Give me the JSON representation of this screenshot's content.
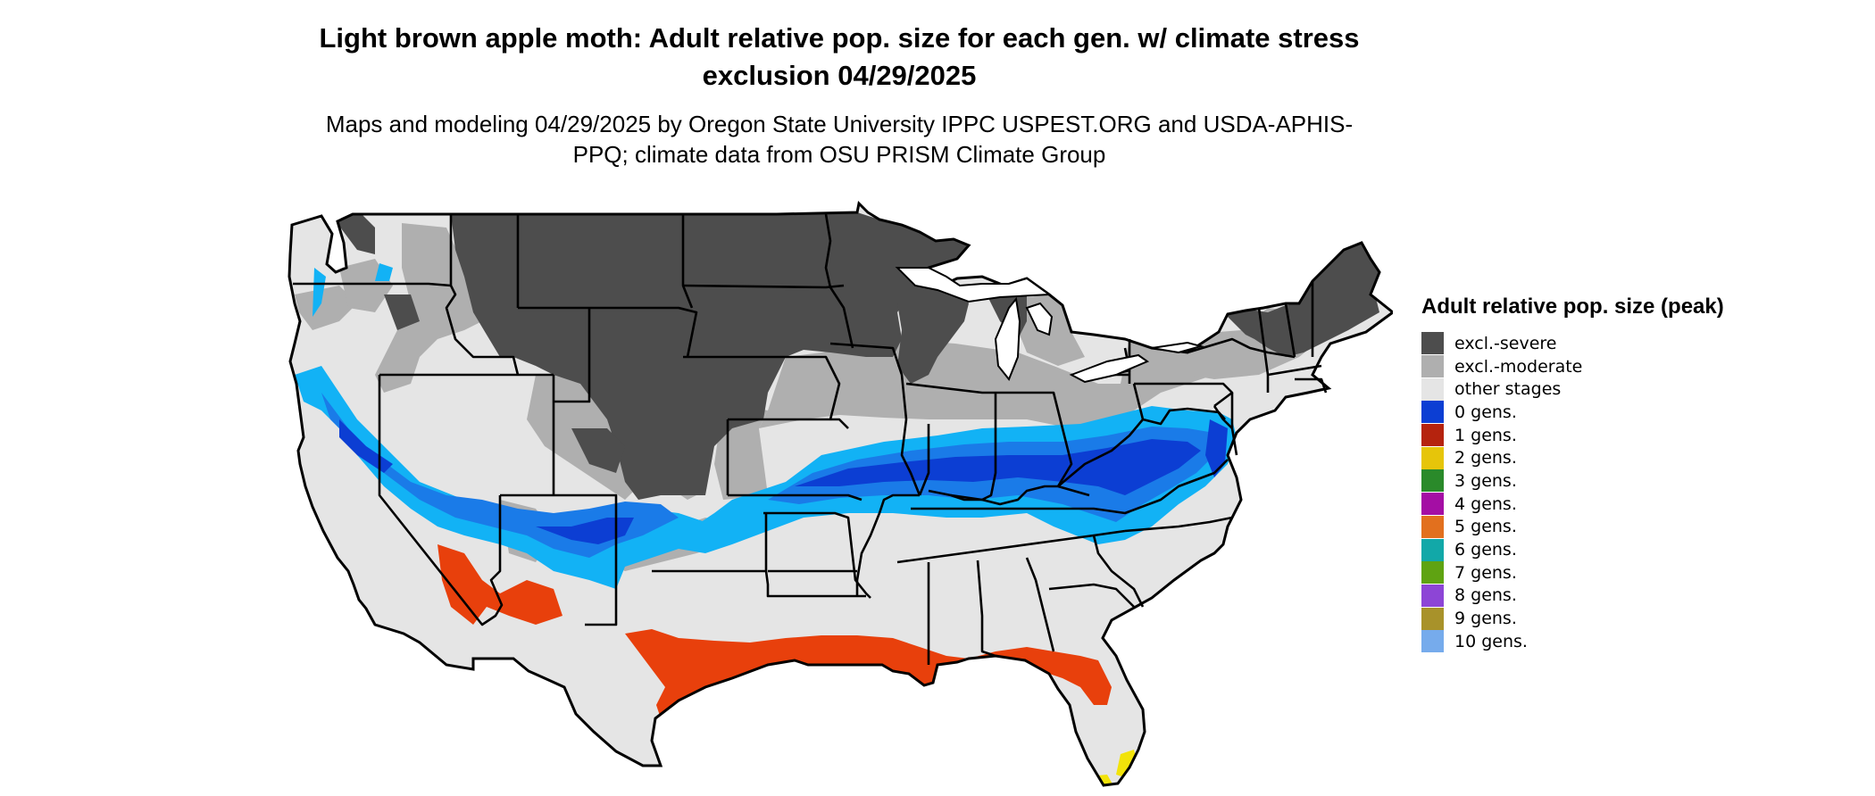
{
  "title": "Light brown apple moth: Adult relative pop. size for each gen. w/ climate stress exclusion 04/29/2025",
  "subtitle": "Maps and modeling 04/29/2025 by Oregon State University IPPC USPEST.ORG and USDA-APHIS-PPQ; climate data from OSU PRISM Climate Group",
  "legend": {
    "title": "Adult relative pop. size (peak)",
    "items": [
      {
        "label": "excl.-severe",
        "color": "#4d4d4d"
      },
      {
        "label": "excl.-moderate",
        "color": "#afafaf"
      },
      {
        "label": "other stages",
        "color": "#e5e5e5"
      },
      {
        "label": "0 gens.",
        "color": "#0c3ed3"
      },
      {
        "label": "1 gens.",
        "color": "#b5230e"
      },
      {
        "label": "2 gens.",
        "color": "#e6c50a"
      },
      {
        "label": "3 gens.",
        "color": "#2a8a2a"
      },
      {
        "label": "4 gens.",
        "color": "#a40ea4"
      },
      {
        "label": "5 gens.",
        "color": "#e2701e"
      },
      {
        "label": "6 gens.",
        "color": "#12a8a8"
      },
      {
        "label": "7 gens.",
        "color": "#5fa312"
      },
      {
        "label": "8 gens.",
        "color": "#8d45d6"
      },
      {
        "label": "9 gens.",
        "color": "#a8922a"
      },
      {
        "label": "10 gens.",
        "color": "#76abec"
      }
    ]
  },
  "map_colors": {
    "severe": "#4d4d4d",
    "moderate": "#afafaf",
    "other": "#e5e5e5",
    "light_blue": "#12b2f5",
    "mid_blue": "#1a7be8",
    "dark_blue": "#0c3ed3",
    "red_orange": "#e8400c",
    "yellow": "#f2e30a",
    "border": "#000000"
  }
}
